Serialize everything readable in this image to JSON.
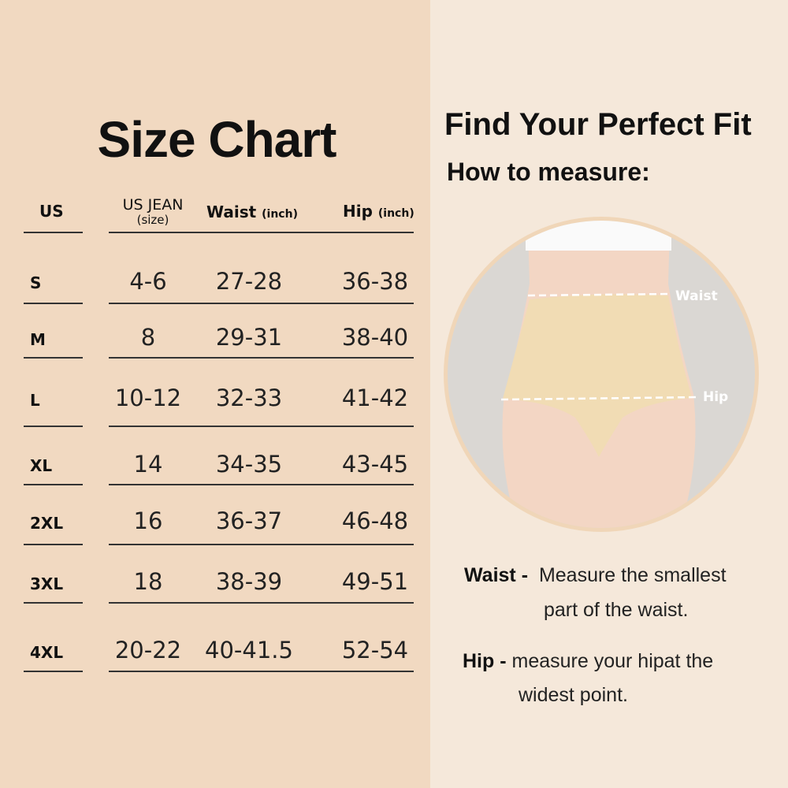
{
  "left": {
    "title": "Size Chart",
    "headers": {
      "us": "US",
      "jean": "US JEAN",
      "jean_sub": "(size)",
      "waist": "Waist",
      "waist_unit": "(inch)",
      "hip": "Hip",
      "hip_unit": "(inch)"
    },
    "rows": [
      {
        "us": "S",
        "jean": "4-6",
        "waist": "27-28",
        "hip": "36-38"
      },
      {
        "us": "M",
        "jean": "8",
        "waist": "29-31",
        "hip": "38-40"
      },
      {
        "us": "L",
        "jean": "10-12",
        "waist": "32-33",
        "hip": "41-42"
      },
      {
        "us": "XL",
        "jean": "14",
        "waist": "34-35",
        "hip": "43-45"
      },
      {
        "us": "2XL",
        "jean": "16",
        "waist": "36-37",
        "hip": "46-48"
      },
      {
        "us": "3XL",
        "jean": "18",
        "waist": "38-39",
        "hip": "49-51"
      },
      {
        "us": "4XL",
        "jean": "20-22",
        "waist": "40-41.5",
        "hip": "52-54"
      }
    ]
  },
  "right": {
    "title": "Find Your Perfect Fit",
    "subtitle": "How to measure:",
    "figure": {
      "waist_label": "Waist",
      "hip_label": "Hip"
    },
    "waist_term": "Waist -",
    "waist_desc_1": "Measure the smallest",
    "waist_desc_2": "part of the waist.",
    "hip_term": "Hip -",
    "hip_desc_1": "measure your hipat the",
    "hip_desc_2": "widest point."
  },
  "colors": {
    "left_bg": "#f1d9c1",
    "right_bg": "#f5e8da",
    "circle_ring": "#f0d6b8"
  }
}
